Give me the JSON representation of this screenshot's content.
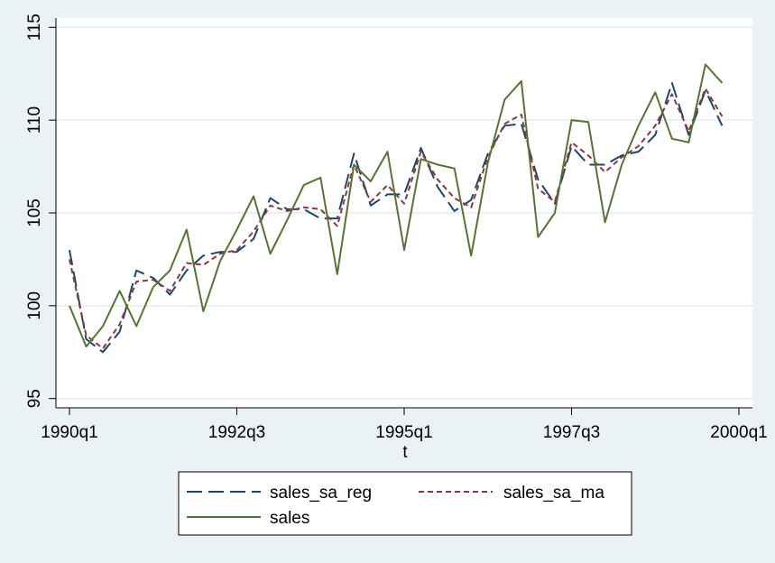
{
  "chart_data": {
    "type": "line",
    "xlabel": "t",
    "ylabel": "",
    "ylim": [
      94.5,
      115.5
    ],
    "yticks": [
      95,
      100,
      105,
      110,
      115
    ],
    "xlim": [
      0,
      40
    ],
    "xticks": [
      {
        "i": 0,
        "label": "1990q1"
      },
      {
        "i": 10,
        "label": "1992q3"
      },
      {
        "i": 20,
        "label": "1995q1"
      },
      {
        "i": 30,
        "label": "1997q3"
      },
      {
        "i": 40,
        "label": "2000q1"
      }
    ],
    "grid": true,
    "legend_position": "bottom",
    "x": [
      "1990q1",
      "1990q2",
      "1990q3",
      "1990q4",
      "1991q1",
      "1991q2",
      "1991q3",
      "1991q4",
      "1992q1",
      "1992q2",
      "1992q3",
      "1992q4",
      "1993q1",
      "1993q2",
      "1993q3",
      "1993q4",
      "1994q1",
      "1994q2",
      "1994q3",
      "1994q4",
      "1995q1",
      "1995q2",
      "1995q3",
      "1995q4",
      "1996q1",
      "1996q2",
      "1996q3",
      "1996q4",
      "1997q1",
      "1997q2",
      "1997q3",
      "1997q4",
      "1998q1",
      "1998q2",
      "1998q3",
      "1998q4",
      "1999q1",
      "1999q2",
      "1999q3",
      "1999q4"
    ],
    "series": [
      {
        "name": "sales_sa_reg",
        "color": "#1a476f",
        "dash": "long-dash",
        "values": [
          103.0,
          98.2,
          97.5,
          98.6,
          101.9,
          101.5,
          100.6,
          101.9,
          102.7,
          102.9,
          102.9,
          103.6,
          105.8,
          105.2,
          105.2,
          104.7,
          104.7,
          108.2,
          105.4,
          106.0,
          106.0,
          108.5,
          106.4,
          105.1,
          105.7,
          108.2,
          109.7,
          109.8,
          106.8,
          105.5,
          108.6,
          107.6,
          107.6,
          108.1,
          108.3,
          109.2,
          112.0,
          109.2,
          111.6,
          109.7
        ]
      },
      {
        "name": "sales_sa_ma",
        "color": "#90353b",
        "dash": "short-dash",
        "values": [
          102.5,
          98.4,
          97.7,
          99.0,
          101.3,
          101.4,
          100.8,
          102.3,
          102.2,
          102.8,
          103.0,
          104.0,
          105.4,
          105.1,
          105.3,
          105.2,
          104.3,
          107.6,
          105.6,
          106.5,
          105.5,
          108.3,
          106.8,
          105.8,
          105.3,
          108.0,
          109.8,
          110.3,
          106.3,
          105.6,
          108.8,
          108.1,
          107.2,
          108.0,
          108.6,
          109.7,
          111.4,
          109.4,
          111.7,
          110.2
        ]
      },
      {
        "name": "sales",
        "color": "#55752f",
        "dash": "solid",
        "values": [
          100.0,
          97.8,
          98.9,
          100.8,
          98.9,
          101.0,
          101.9,
          104.1,
          99.7,
          102.4,
          104.1,
          105.9,
          102.8,
          104.6,
          106.5,
          106.9,
          101.7,
          107.6,
          106.7,
          108.3,
          103.0,
          107.9,
          107.6,
          107.4,
          102.7,
          107.7,
          111.1,
          112.1,
          103.7,
          105.0,
          110.0,
          109.9,
          104.5,
          107.6,
          109.7,
          111.5,
          109.0,
          108.8,
          113.0,
          112.0
        ]
      }
    ]
  }
}
